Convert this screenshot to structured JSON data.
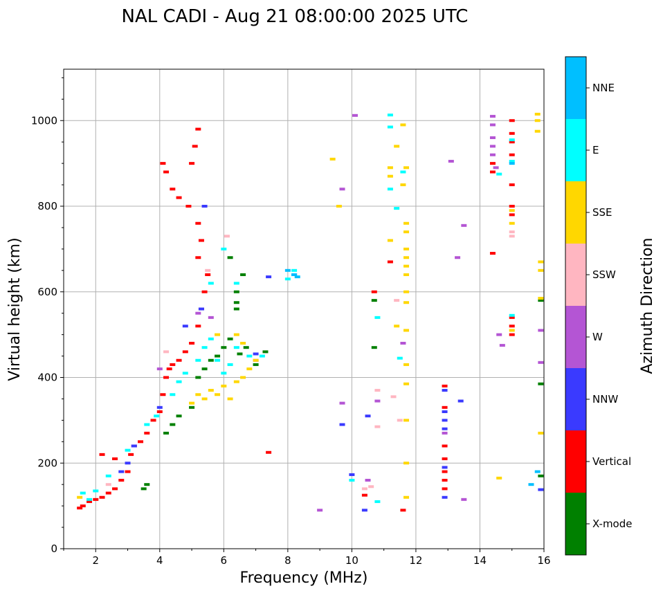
{
  "chart_data": {
    "type": "scatter",
    "title": "NAL CADI - Aug 21 08:00:00 2025 UTC",
    "xlabel": "Frequency (MHz)",
    "ylabel": "Virtual height (km)",
    "xlim": [
      1,
      16
    ],
    "ylim": [
      0,
      1120
    ],
    "xticks": [
      2,
      4,
      6,
      8,
      10,
      12,
      14,
      16
    ],
    "yticks": [
      0,
      200,
      400,
      600,
      800,
      1000
    ],
    "grid": true,
    "colorbar": {
      "label": "Azimuth Direction",
      "categories": [
        {
          "name": "X-mode",
          "color": "#008000"
        },
        {
          "name": "Vertical",
          "color": "#ff0000"
        },
        {
          "name": "NNW",
          "color": "#3a3aff"
        },
        {
          "name": "W",
          "color": "#b455d4"
        },
        {
          "name": "SSW",
          "color": "#ffb6c1"
        },
        {
          "name": "SSE",
          "color": "#ffd700"
        },
        {
          "name": "E",
          "color": "#00ffff"
        },
        {
          "name": "NNE",
          "color": "#00bfff"
        }
      ]
    },
    "series": [
      {
        "name": "X-mode",
        "points": [
          [
            3.5,
            140
          ],
          [
            3.6,
            150
          ],
          [
            4.2,
            270
          ],
          [
            4.4,
            290
          ],
          [
            4.6,
            310
          ],
          [
            5.0,
            330
          ],
          [
            5.2,
            400
          ],
          [
            5.4,
            420
          ],
          [
            5.6,
            440
          ],
          [
            5.8,
            450
          ],
          [
            6.0,
            470
          ],
          [
            6.2,
            490
          ],
          [
            6.4,
            560
          ],
          [
            6.4,
            575
          ],
          [
            6.4,
            600
          ],
          [
            6.6,
            640
          ],
          [
            6.2,
            680
          ],
          [
            6.5,
            455
          ],
          [
            6.7,
            470
          ],
          [
            7.0,
            430
          ],
          [
            7.3,
            460
          ],
          [
            10.7,
            580
          ],
          [
            10.7,
            470
          ],
          [
            15.9,
            385
          ],
          [
            15.9,
            580
          ],
          [
            15.9,
            170
          ]
        ]
      },
      {
        "name": "Vertical",
        "points": [
          [
            1.5,
            95
          ],
          [
            1.6,
            100
          ],
          [
            1.8,
            110
          ],
          [
            2.0,
            115
          ],
          [
            2.2,
            120
          ],
          [
            2.4,
            130
          ],
          [
            2.6,
            140
          ],
          [
            2.8,
            160
          ],
          [
            3.0,
            180
          ],
          [
            3.1,
            220
          ],
          [
            3.2,
            240
          ],
          [
            3.4,
            250
          ],
          [
            3.6,
            270
          ],
          [
            3.8,
            300
          ],
          [
            4.0,
            320
          ],
          [
            4.1,
            360
          ],
          [
            4.2,
            400
          ],
          [
            4.3,
            420
          ],
          [
            4.4,
            430
          ],
          [
            4.6,
            440
          ],
          [
            4.8,
            460
          ],
          [
            5.0,
            480
          ],
          [
            5.2,
            520
          ],
          [
            5.3,
            560
          ],
          [
            5.4,
            600
          ],
          [
            5.5,
            640
          ],
          [
            5.2,
            680
          ],
          [
            5.3,
            720
          ],
          [
            5.2,
            760
          ],
          [
            4.9,
            800
          ],
          [
            4.6,
            820
          ],
          [
            4.4,
            840
          ],
          [
            4.2,
            880
          ],
          [
            5.0,
            900
          ],
          [
            5.1,
            940
          ],
          [
            5.2,
            980
          ],
          [
            4.1,
            900
          ],
          [
            2.2,
            220
          ],
          [
            2.6,
            210
          ],
          [
            7.4,
            225
          ],
          [
            10.4,
            125
          ],
          [
            10.7,
            600
          ],
          [
            11.2,
            670
          ],
          [
            11.6,
            90
          ],
          [
            14.4,
            690
          ],
          [
            14.4,
            880
          ],
          [
            14.4,
            900
          ],
          [
            12.9,
            180
          ],
          [
            12.9,
            210
          ],
          [
            12.9,
            240
          ],
          [
            12.9,
            330
          ],
          [
            12.9,
            380
          ],
          [
            12.9,
            140
          ],
          [
            12.9,
            160
          ],
          [
            15.0,
            850
          ],
          [
            15.0,
            800
          ],
          [
            15.0,
            780
          ],
          [
            15.0,
            540
          ],
          [
            15.0,
            520
          ],
          [
            15.0,
            500
          ],
          [
            15.0,
            1000
          ],
          [
            15.0,
            970
          ],
          [
            15.0,
            950
          ],
          [
            15.0,
            920
          ]
        ]
      },
      {
        "name": "NNW",
        "points": [
          [
            2.8,
            180
          ],
          [
            3.0,
            200
          ],
          [
            3.2,
            240
          ],
          [
            4.0,
            330
          ],
          [
            4.8,
            520
          ],
          [
            5.3,
            560
          ],
          [
            5.4,
            800
          ],
          [
            7.0,
            455
          ],
          [
            7.4,
            635
          ],
          [
            8.2,
            640
          ],
          [
            10.0,
            173
          ],
          [
            10.4,
            90
          ],
          [
            10.5,
            310
          ],
          [
            12.9,
            280
          ],
          [
            12.9,
            300
          ],
          [
            12.9,
            320
          ],
          [
            12.9,
            370
          ],
          [
            12.9,
            120
          ],
          [
            12.9,
            190
          ],
          [
            13.4,
            345
          ],
          [
            15.9,
            138
          ],
          [
            9.7,
            290
          ]
        ]
      },
      {
        "name": "W",
        "points": [
          [
            4.0,
            420
          ],
          [
            5.2,
            550
          ],
          [
            5.6,
            540
          ],
          [
            7.0,
            440
          ],
          [
            9.0,
            90
          ],
          [
            9.7,
            340
          ],
          [
            9.7,
            840
          ],
          [
            10.1,
            1012
          ],
          [
            10.5,
            160
          ],
          [
            10.8,
            345
          ],
          [
            11.6,
            480
          ],
          [
            13.3,
            680
          ],
          [
            13.5,
            755
          ],
          [
            13.5,
            115
          ],
          [
            14.4,
            1010
          ],
          [
            14.4,
            990
          ],
          [
            14.4,
            960
          ],
          [
            14.4,
            940
          ],
          [
            14.4,
            920
          ],
          [
            14.5,
            890
          ],
          [
            14.6,
            500
          ],
          [
            14.7,
            475
          ],
          [
            15.9,
            510
          ],
          [
            15.9,
            435
          ],
          [
            13.1,
            905
          ],
          [
            12.9,
            270
          ]
        ]
      },
      {
        "name": "SSW",
        "points": [
          [
            2.4,
            150
          ],
          [
            4.2,
            460
          ],
          [
            5.5,
            650
          ],
          [
            6.1,
            730
          ],
          [
            10.4,
            140
          ],
          [
            10.6,
            145
          ],
          [
            10.8,
            370
          ],
          [
            10.8,
            285
          ],
          [
            11.3,
            355
          ],
          [
            11.5,
            300
          ],
          [
            11.4,
            580
          ],
          [
            15.0,
            730
          ],
          [
            15.0,
            740
          ]
        ]
      },
      {
        "name": "SSE",
        "points": [
          [
            1.5,
            120
          ],
          [
            5.0,
            340
          ],
          [
            5.2,
            360
          ],
          [
            5.4,
            350
          ],
          [
            5.6,
            370
          ],
          [
            5.8,
            360
          ],
          [
            6.0,
            380
          ],
          [
            6.2,
            350
          ],
          [
            6.4,
            390
          ],
          [
            6.6,
            400
          ],
          [
            6.8,
            420
          ],
          [
            7.0,
            440
          ],
          [
            6.4,
            500
          ],
          [
            6.6,
            480
          ],
          [
            5.8,
            500
          ],
          [
            9.6,
            800
          ],
          [
            9.4,
            910
          ],
          [
            11.2,
            870
          ],
          [
            11.2,
            890
          ],
          [
            11.4,
            940
          ],
          [
            11.6,
            990
          ],
          [
            11.6,
            850
          ],
          [
            11.7,
            890
          ],
          [
            11.7,
            760
          ],
          [
            11.7,
            740
          ],
          [
            11.7,
            700
          ],
          [
            11.7,
            680
          ],
          [
            11.7,
            660
          ],
          [
            11.7,
            640
          ],
          [
            11.7,
            600
          ],
          [
            11.7,
            575
          ],
          [
            11.7,
            510
          ],
          [
            11.7,
            430
          ],
          [
            11.7,
            385
          ],
          [
            11.7,
            300
          ],
          [
            11.7,
            200
          ],
          [
            11.7,
            120
          ],
          [
            11.2,
            720
          ],
          [
            11.4,
            520
          ],
          [
            14.6,
            165
          ],
          [
            15.0,
            760
          ],
          [
            15.0,
            790
          ],
          [
            15.0,
            510
          ],
          [
            15.8,
            1015
          ],
          [
            15.8,
            1000
          ],
          [
            15.8,
            975
          ],
          [
            15.9,
            670
          ],
          [
            15.9,
            650
          ],
          [
            15.9,
            585
          ],
          [
            15.9,
            270
          ]
        ]
      },
      {
        "name": "E",
        "points": [
          [
            1.6,
            130
          ],
          [
            1.8,
            115
          ],
          [
            2.0,
            135
          ],
          [
            2.4,
            170
          ],
          [
            3.0,
            230
          ],
          [
            3.6,
            290
          ],
          [
            3.9,
            310
          ],
          [
            4.4,
            360
          ],
          [
            4.6,
            390
          ],
          [
            4.8,
            410
          ],
          [
            5.2,
            440
          ],
          [
            5.4,
            470
          ],
          [
            5.6,
            490
          ],
          [
            5.8,
            440
          ],
          [
            6.0,
            410
          ],
          [
            6.2,
            430
          ],
          [
            6.4,
            470
          ],
          [
            6.8,
            450
          ],
          [
            7.2,
            450
          ],
          [
            5.6,
            620
          ],
          [
            6.0,
            700
          ],
          [
            6.4,
            620
          ],
          [
            8.0,
            630
          ],
          [
            8.2,
            650
          ],
          [
            10.0,
            160
          ],
          [
            10.8,
            110
          ],
          [
            10.8,
            540
          ],
          [
            11.2,
            1013
          ],
          [
            11.2,
            985
          ],
          [
            11.2,
            840
          ],
          [
            11.4,
            795
          ],
          [
            11.6,
            880
          ],
          [
            11.5,
            445
          ],
          [
            14.6,
            875
          ],
          [
            15.0,
            955
          ],
          [
            15.0,
            905
          ],
          [
            15.0,
            545
          ]
        ]
      },
      {
        "name": "NNE",
        "points": [
          [
            8.2,
            640
          ],
          [
            8.0,
            650
          ],
          [
            8.3,
            635
          ],
          [
            15.0,
            900
          ],
          [
            15.8,
            180
          ],
          [
            15.6,
            150
          ]
        ]
      }
    ]
  }
}
